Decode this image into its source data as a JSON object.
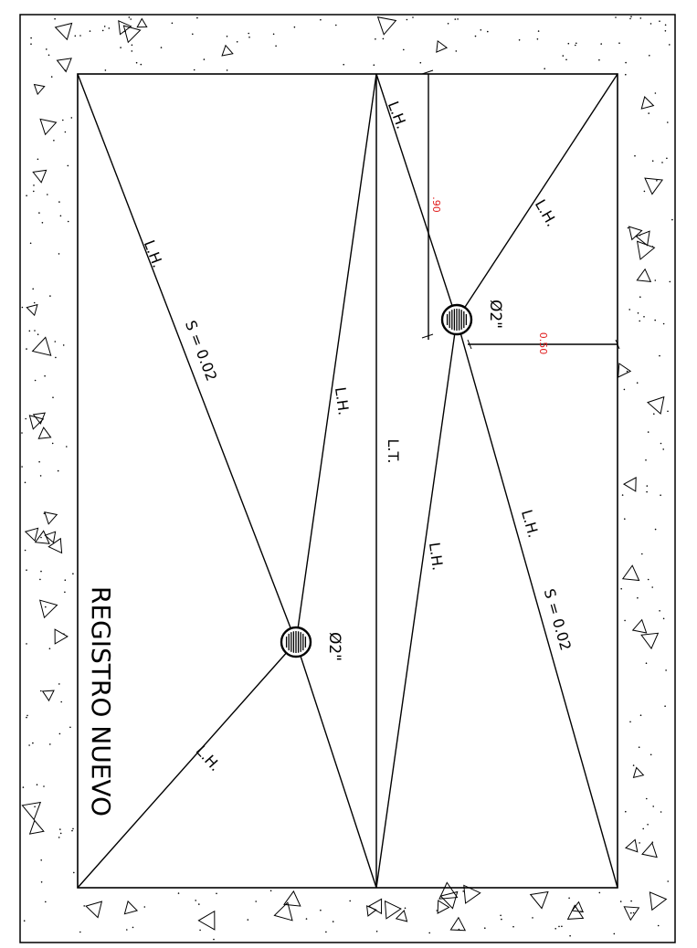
{
  "title": "REGISTRO NUEVO",
  "drains": [
    {
      "label": "Ø2\""
    },
    {
      "label": "Ø2\""
    }
  ],
  "lines": {
    "lt": "L.T.",
    "lh": "L.H.",
    "slope": "S = 0.02"
  },
  "dimensions": {
    "offset_a": ".90",
    "offset_b": "0.50"
  },
  "colors": {
    "line": "#000000",
    "dimension_text": "#e01b1b"
  }
}
